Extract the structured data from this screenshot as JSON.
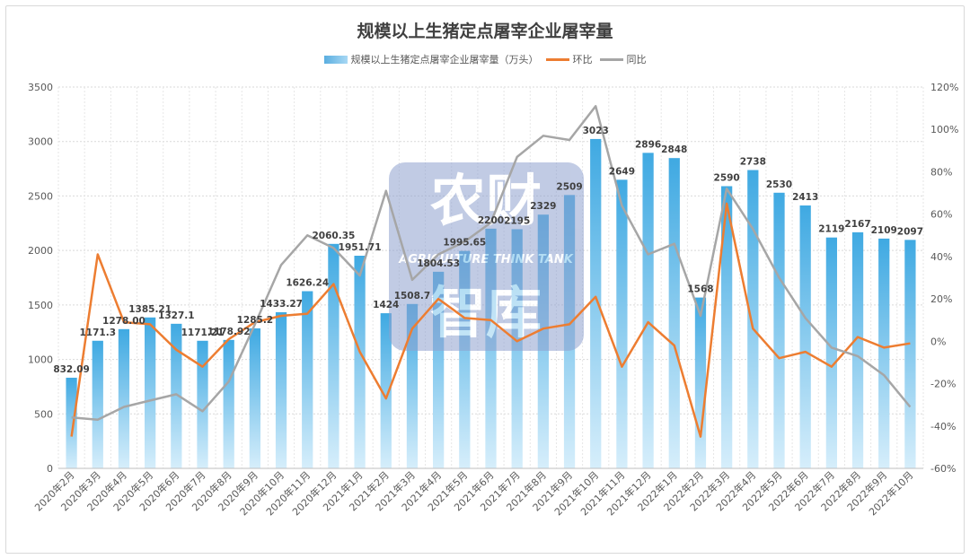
{
  "chart_data": {
    "type": "bar",
    "title": "规模以上生猪定点屠宰企业屠宰量",
    "categories": [
      "2020年2月",
      "2020年3月",
      "2020年4月",
      "2020年5月",
      "2020年6月",
      "2020年7月",
      "2020年8月",
      "2020年9月",
      "2020年10月",
      "2020年11月",
      "2020年12月",
      "2021年1月",
      "2021年2月",
      "2021年3月",
      "2021年4月",
      "2021年5月",
      "2021年6月",
      "2021年7月",
      "2021年8月",
      "2021年9月",
      "2021年10月",
      "2021年11月",
      "2021年12月",
      "2022年1月",
      "2022年2月",
      "2022年3月",
      "2022年4月",
      "2022年5月",
      "2022年6月",
      "2022年7月",
      "2022年8月",
      "2022年9月",
      "2022年10月"
    ],
    "series": [
      {
        "name": "规模以上生猪定点屠宰企业屠宰量（万头）",
        "type": "bar",
        "axis": "left",
        "color": "#3fa9e2",
        "values": [
          832.09,
          1171.3,
          1278.0,
          1385.21,
          1327.1,
          1171.21,
          1178.92,
          1285.2,
          1433.27,
          1626.24,
          2060.35,
          1951.71,
          1424,
          1508.7,
          1804.53,
          1995.65,
          2200,
          2195,
          2329,
          2509,
          3023,
          2649,
          2896,
          2848,
          1568,
          2590,
          2738,
          2530,
          2413,
          2119,
          2167,
          2109,
          2097
        ],
        "labels": [
          "832.09",
          "1171.3",
          "1278.00",
          "1385.21",
          "1327.1",
          "1171.21",
          "1178.92",
          "1285.2",
          "1433.27",
          "1626.24",
          "2060.35",
          "1951.71",
          "1424",
          "1508.7",
          "1804.53",
          "1995.65",
          "2200",
          "2195",
          "2329",
          "2509",
          "3023",
          "2649",
          "2896",
          "2848",
          "1568",
          "2590",
          "2738",
          "2530",
          "2413",
          "2119",
          "2167",
          "2109",
          "2097"
        ]
      },
      {
        "name": "环比",
        "type": "line",
        "axis": "right",
        "color": "#ed7d31",
        "values": [
          -45,
          41,
          9,
          8,
          -4,
          -12,
          1,
          9,
          12,
          13,
          27,
          -5,
          -27,
          6,
          20,
          11,
          10,
          0,
          6,
          8,
          21,
          -12,
          9,
          -2,
          -45,
          65,
          6,
          -8,
          -5,
          -12,
          2,
          -3,
          -1
        ]
      },
      {
        "name": "同比",
        "type": "line",
        "axis": "right",
        "color": "#a6a6a6",
        "values": [
          -36,
          -37,
          -31,
          -28,
          -25,
          -33,
          -19,
          8,
          36,
          50,
          44,
          31,
          71,
          29,
          41,
          47,
          56,
          87,
          97,
          95,
          111,
          64,
          41,
          46,
          12,
          72,
          53,
          30,
          11,
          -3,
          -7,
          -16,
          -31
        ]
      }
    ],
    "y_left": {
      "min": 0,
      "max": 3500,
      "ticks": [
        0,
        500,
        1000,
        1500,
        2000,
        2500,
        3000,
        3500
      ]
    },
    "y_right": {
      "min": -60,
      "max": 120,
      "ticks": [
        "-60%",
        "-40%",
        "-20%",
        "0%",
        "20%",
        "40%",
        "60%",
        "80%",
        "100%",
        "120%"
      ]
    },
    "legend_position": "top",
    "grid": true
  },
  "watermark": {
    "top": "农财",
    "middle": "AGRICULTURE THINK TANK",
    "bottom": "智库"
  }
}
